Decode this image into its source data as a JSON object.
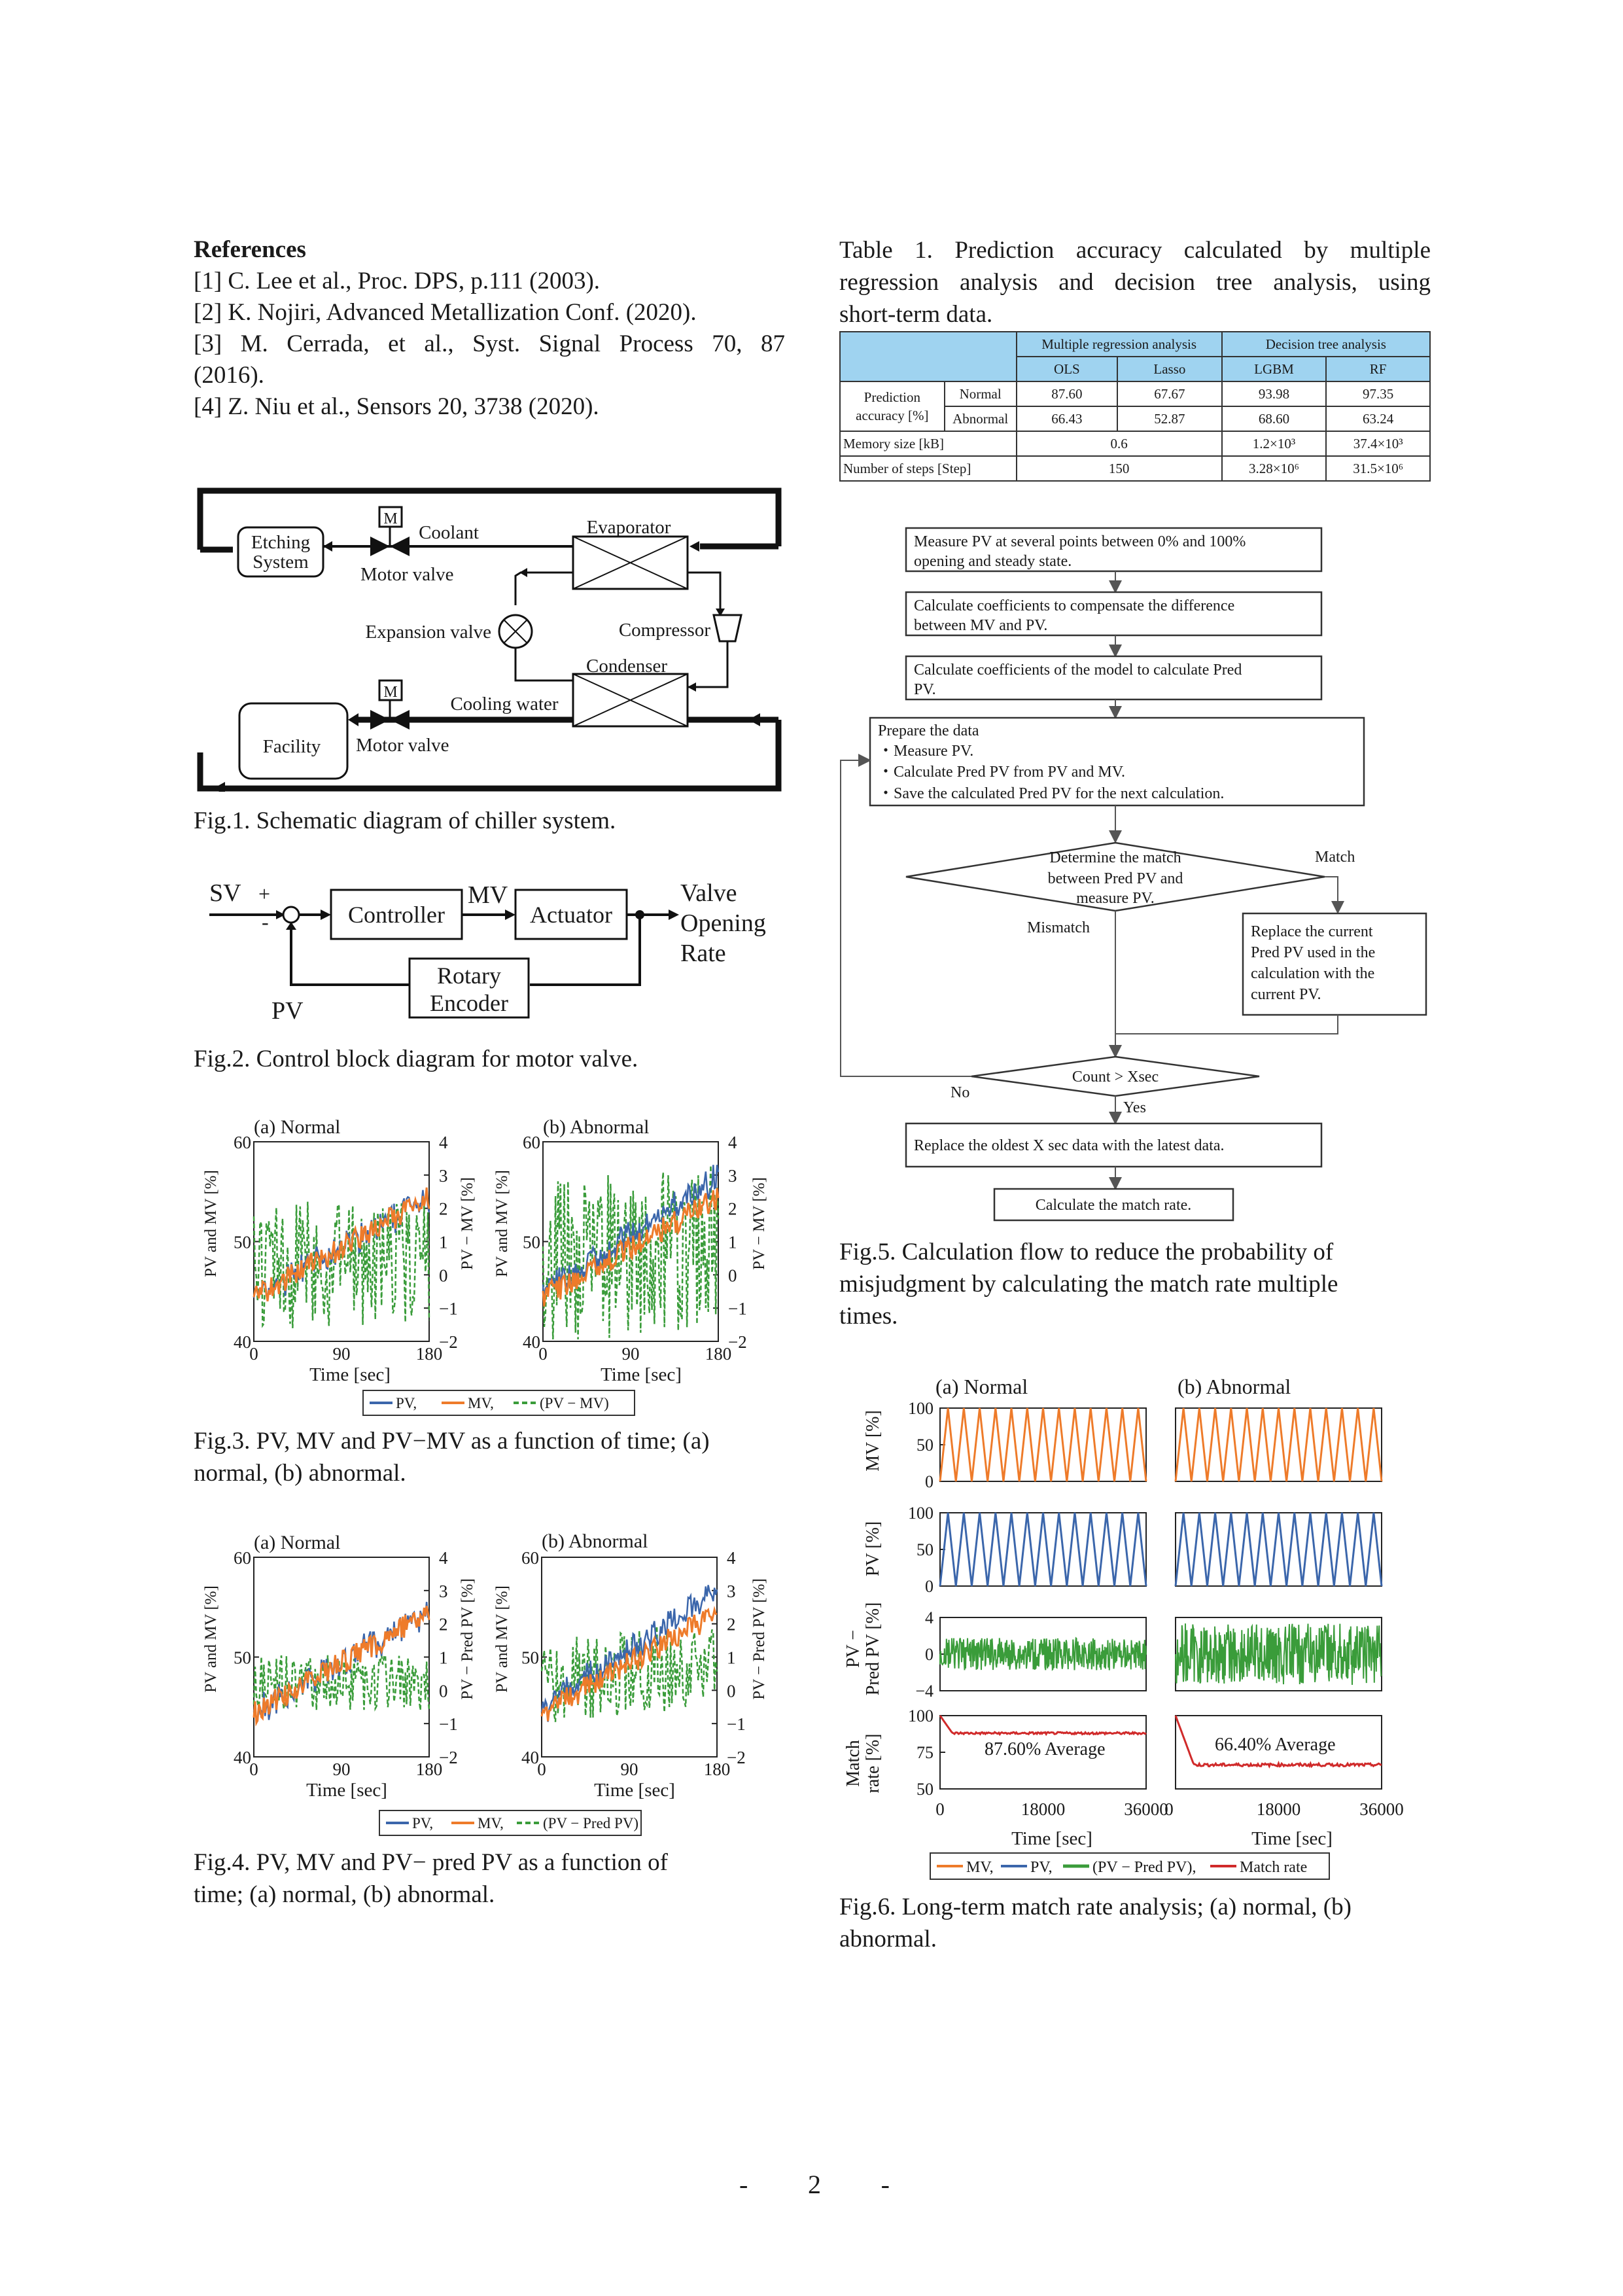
{
  "references": {
    "title": "References",
    "items": [
      "[1] C. Lee et al., Proc. DPS, p.111 (2003).",
      "[2] K. Nojiri, Advanced Metallization Conf. (2020).",
      "[3] M. Cerrada, et al., Syst. Signal Process 70, 87",
      "(2016).",
      "[4] Z. Niu et al., Sensors 20, 3738 (2020)."
    ]
  },
  "table1": {
    "caption": [
      "Table 1. Prediction accuracy calculated by multiple",
      "regression analysis and decision tree analysis, using",
      "short-term data."
    ],
    "group_headers": [
      "Multiple regression analysis",
      "Decision tree analysis"
    ],
    "columns": [
      "OLS",
      "Lasso",
      "LGBM",
      "RF"
    ],
    "row_label": [
      "Prediction",
      "accuracy [%]"
    ],
    "rows": [
      {
        "label": "Normal",
        "values": [
          "87.60",
          "67.67",
          "93.98",
          "97.35"
        ]
      },
      {
        "label": "Abnormal",
        "values": [
          "66.43",
          "52.87",
          "68.60",
          "63.24"
        ]
      }
    ],
    "memory": {
      "label": "Memory size [kB]",
      "regression": "0.6",
      "lgbm": "1.2×10³",
      "rf": "37.4×10³"
    },
    "steps": {
      "label": "Number of steps [Step]",
      "regression": "150",
      "lgbm": "3.28×10⁶",
      "rf": "31.5×10⁶"
    }
  },
  "fig1": {
    "caption": "Fig.1. Schematic diagram of chiller system.",
    "labels": {
      "etching": [
        "Etching",
        "System"
      ],
      "m": "M",
      "coolant": "Coolant",
      "evaporator": "Evaporator",
      "motor_valve": "Motor valve",
      "expansion_valve": "Expansion valve",
      "compressor": "Compressor",
      "condenser": "Condenser",
      "cooling_water": "Cooling water",
      "facility": "Facility"
    }
  },
  "fig2": {
    "caption": "Fig.2. Control block diagram for motor valve.",
    "labels": {
      "sv": "SV",
      "plus": "+",
      "minus": "-",
      "controller": "Controller",
      "mv": "MV",
      "actuator": "Actuator",
      "output": [
        "Valve",
        "Opening",
        "Rate"
      ],
      "rotary": [
        "Rotary",
        "Encoder"
      ],
      "pv": "PV"
    }
  },
  "fig3": {
    "caption": [
      "Fig.3. PV, MV and PV−MV as a function of time; (a)",
      "normal, (b) abnormal."
    ],
    "panel_a": "(a) Normal",
    "panel_b": "(b) Abnormal",
    "ylabel_left": "PV and MV [%]",
    "ylabel_right": "PV − MV [%]",
    "xlabel": "Time [sec]",
    "left_ticks": [
      "60",
      "50",
      "40"
    ],
    "right_ticks": [
      "4",
      "3",
      "2",
      "1",
      "0",
      "−1",
      "−2"
    ],
    "x_ticks": [
      "0",
      "90",
      "180"
    ],
    "legend": [
      "PV,",
      "MV,",
      "(PV − MV)"
    ]
  },
  "fig4": {
    "caption": [
      "Fig.4. PV, MV and PV− pred PV as a function of",
      "time; (a) normal, (b) abnormal."
    ],
    "panel_a": "(a) Normal",
    "panel_b": "(b) Abnormal",
    "ylabel_left": "PV and MV [%]",
    "ylabel_right": "PV − Pred PV [%]",
    "xlabel": "Time [sec]",
    "left_ticks": [
      "60",
      "50",
      "40"
    ],
    "right_ticks": [
      "4",
      "3",
      "2",
      "1",
      "0",
      "−1",
      "−2"
    ],
    "x_ticks": [
      "0",
      "90",
      "180"
    ],
    "legend": [
      "PV,",
      "MV,",
      "(PV − Pred PV)"
    ]
  },
  "fig5": {
    "caption": [
      "Fig.5. Calculation flow to reduce the probability of",
      "misjudgment by calculating the match rate multiple",
      "times."
    ],
    "step1": [
      "Measure PV at several points between 0% and 100%",
      "opening and steady state."
    ],
    "step2": [
      "Calculate coefficients to compensate the difference",
      "between MV and PV."
    ],
    "step3": [
      "Calculate coefficients of the model to calculate Pred",
      "PV."
    ],
    "step4": [
      "Prepare the data",
      "・Measure PV.",
      "・Calculate Pred PV from PV and MV.",
      "・Save the calculated Pred PV for the next calculation."
    ],
    "decision1": [
      "Determine the match",
      "between Pred PV and",
      "measure PV."
    ],
    "match": "Match",
    "mismatch": "Mismatch",
    "replace": [
      "Replace the current",
      "Pred PV used in the",
      "calculation with the",
      "current PV."
    ],
    "decision2": "Count > Xsec",
    "no": "No",
    "yes": "Yes",
    "step5": "Replace the oldest X sec data with the latest data.",
    "step6": "Calculate the match rate."
  },
  "fig6": {
    "caption": [
      "Fig.6. Long-term match rate analysis; (a) normal, (b)",
      "abnormal."
    ],
    "panel_a": "(a) Normal",
    "panel_b": "(b) Abnormal",
    "ylabels": {
      "mv": "MV [%]",
      "pv": "PV [%]",
      "diff": [
        "PV −",
        "Pred  PV [%]"
      ],
      "rate": [
        "Match",
        "rate [%]"
      ]
    },
    "ticks_100": [
      "100",
      "50",
      "0"
    ],
    "ticks_diff": [
      "4",
      "0",
      "−4"
    ],
    "ticks_rate": [
      "100",
      "75",
      "50"
    ],
    "x_ticks": [
      "0",
      "18000",
      "36000"
    ],
    "xlabel": "Time [sec]",
    "avg_a": "87.60%    Average",
    "avg_b": "66.40%    Average",
    "legend": [
      "MV,",
      "PV,",
      "(PV − Pred PV),",
      "Match rate"
    ]
  },
  "colors": {
    "pv": "#3b66ab",
    "mv": "#ee7b2a",
    "diff": "#3a9c3a",
    "rate": "#d02a2a",
    "table_header": "#9fd3f0"
  },
  "page_number": "2",
  "page_dash": "-"
}
